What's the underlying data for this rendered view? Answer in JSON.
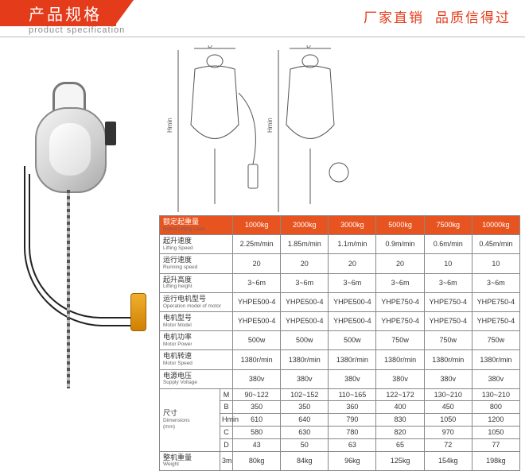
{
  "header": {
    "title_cn": "产品规格",
    "title_en": "product specification",
    "right1": "厂家直销",
    "right2": "品质信得过"
  },
  "table": {
    "head_label_cn": "额定起重量",
    "head_label_en": "Rated Lifting Load",
    "capacities": [
      "1000kg",
      "2000kg",
      "3000kg",
      "5000kg",
      "7500kg",
      "10000kg"
    ],
    "rows": [
      {
        "cn": "起升速度",
        "en": "Lifting Speed",
        "v": [
          "2.25m/min",
          "1.85m/min",
          "1.1m/min",
          "0.9m/min",
          "0.6m/min",
          "0.45m/min"
        ]
      },
      {
        "cn": "运行速度",
        "en": "Running speed",
        "v": [
          "20",
          "20",
          "20",
          "20",
          "10",
          "10"
        ]
      },
      {
        "cn": "起升高度",
        "en": "Lifting height",
        "v": [
          "3~6m",
          "3~6m",
          "3~6m",
          "3~6m",
          "3~6m",
          "3~6m"
        ]
      },
      {
        "cn": "运行电机型号",
        "en": "Operation model of motor",
        "v": [
          "YHPE500-4",
          "YHPE500-4",
          "YHPE500-4",
          "YHPE750-4",
          "YHPE750-4",
          "YHPE750-4"
        ]
      },
      {
        "cn": "电机型号",
        "en": "Motor Model",
        "v": [
          "YHPE500-4",
          "YHPE500-4",
          "YHPE500-4",
          "YHPE750-4",
          "YHPE750-4",
          "YHPE750-4"
        ]
      },
      {
        "cn": "电机功率",
        "en": "Motor Power",
        "v": [
          "500w",
          "500w",
          "500w",
          "750w",
          "750w",
          "750w"
        ]
      },
      {
        "cn": "电机转速",
        "en": "Motor Speed",
        "v": [
          "1380r/min",
          "1380r/min",
          "1380r/min",
          "1380r/min",
          "1380r/min",
          "1380r/min"
        ]
      },
      {
        "cn": "电源电压",
        "en": "Supply Voltage",
        "v": [
          "380v",
          "380v",
          "380v",
          "380v",
          "380v",
          "380v"
        ]
      }
    ],
    "dims": {
      "label_cn": "尺寸",
      "label_en": "Dimensions",
      "unit": "(mm)",
      "sub": [
        {
          "k": "M",
          "v": [
            "90~122",
            "102~152",
            "110~165",
            "122~172",
            "130~210",
            "130~210"
          ]
        },
        {
          "k": "B",
          "v": [
            "350",
            "350",
            "360",
            "400",
            "450",
            "800"
          ]
        },
        {
          "k": "Hmin",
          "v": [
            "610",
            "640",
            "790",
            "830",
            "1050",
            "1200"
          ]
        },
        {
          "k": "C",
          "v": [
            "580",
            "630",
            "780",
            "820",
            "970",
            "1050"
          ]
        },
        {
          "k": "D",
          "v": [
            "43",
            "50",
            "63",
            "65",
            "72",
            "77"
          ]
        }
      ]
    },
    "weight": {
      "cn": "整机重量",
      "en": "Weight",
      "k": "3m",
      "v": [
        "80kg",
        "84kg",
        "96kg",
        "125kg",
        "154kg",
        "198kg"
      ]
    },
    "colors": {
      "header_bg": "#e8541f",
      "header_fg": "#ffffff",
      "border": "#888888"
    }
  }
}
